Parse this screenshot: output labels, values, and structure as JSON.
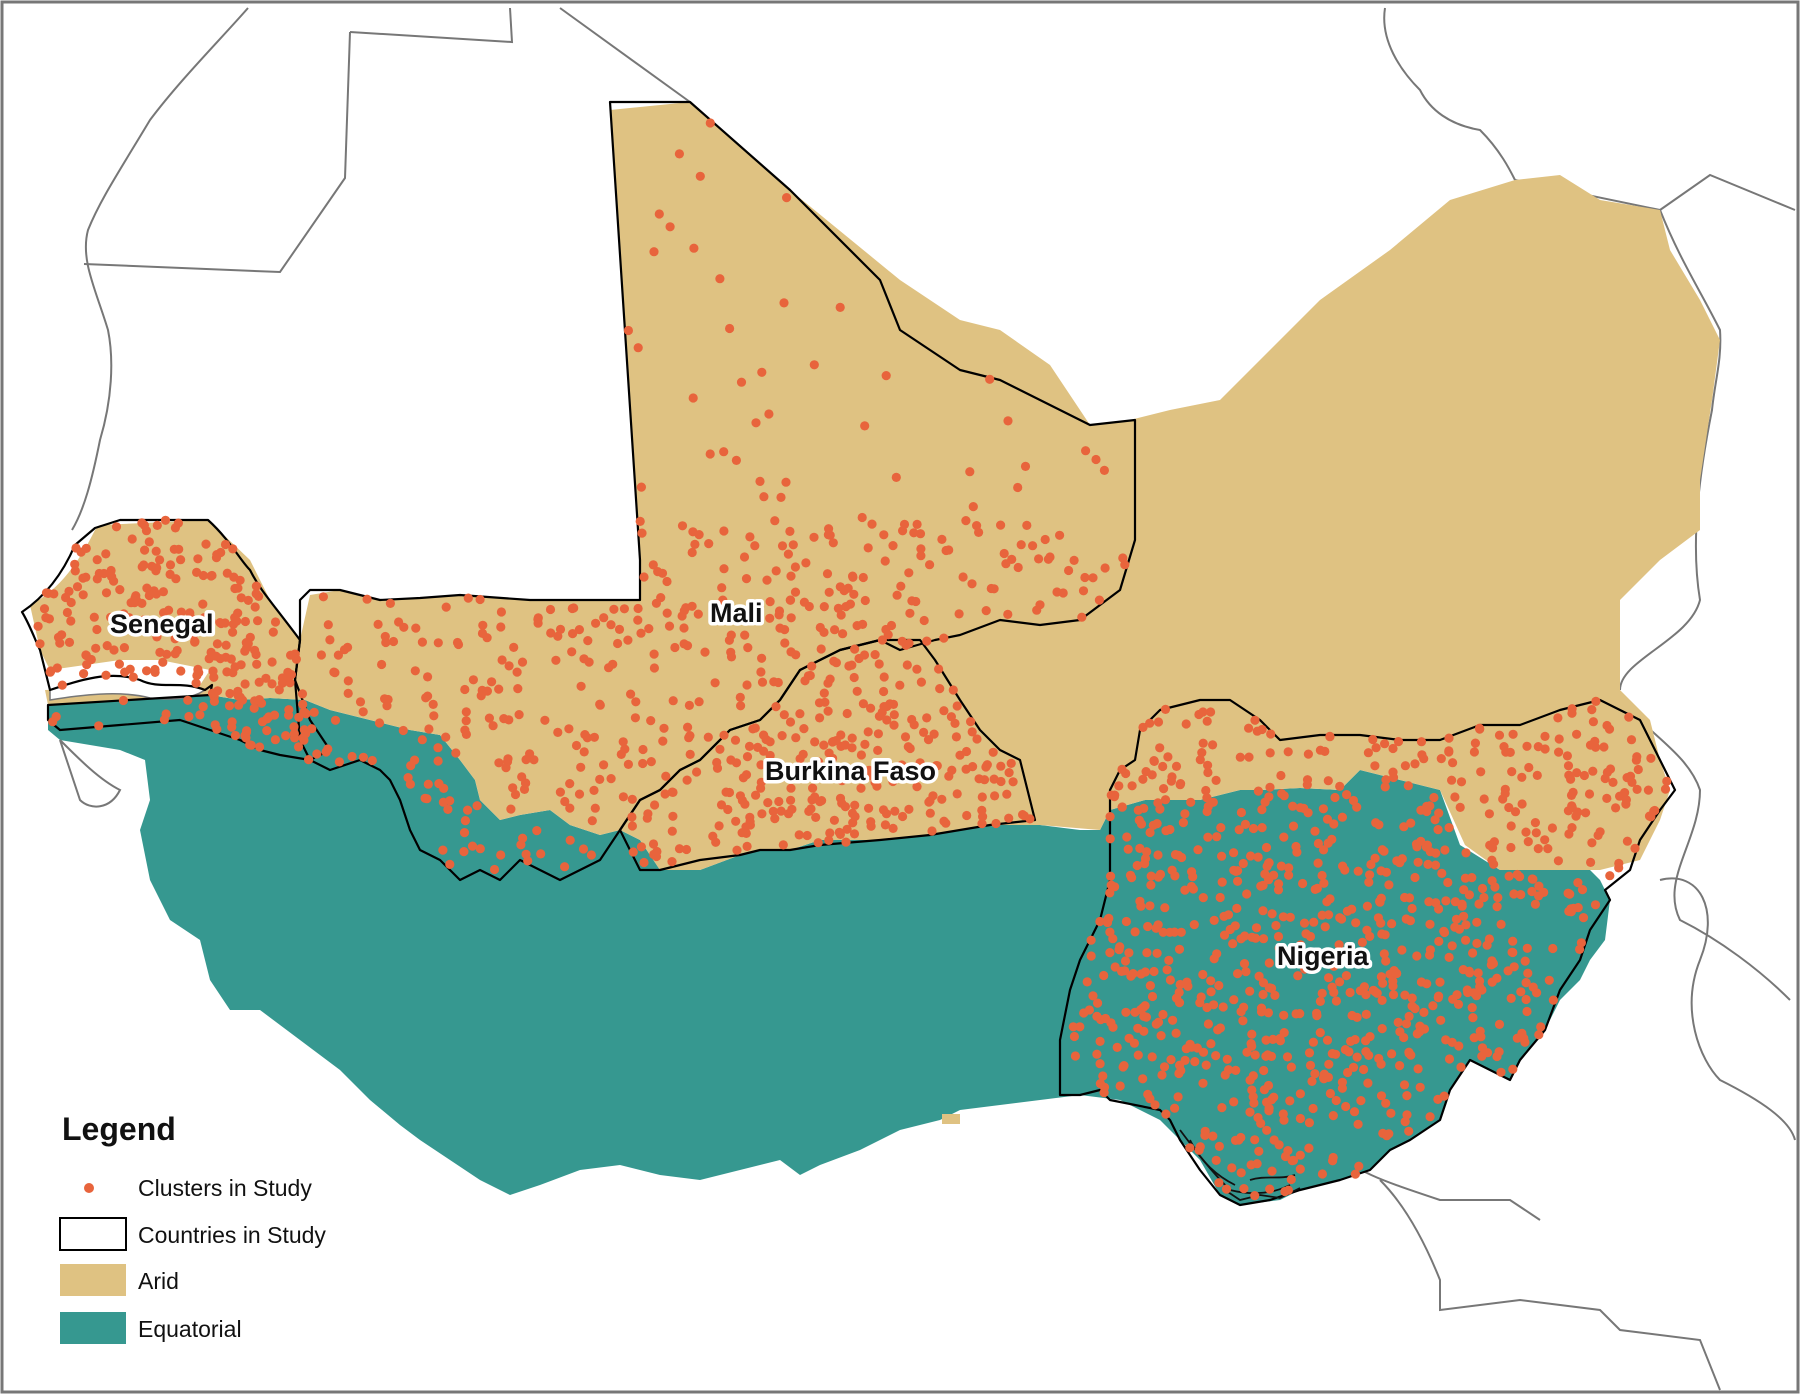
{
  "map": {
    "countries_in_study": [
      "Senegal",
      "Mali",
      "Burkina Faso",
      "Nigeria"
    ],
    "colors": {
      "arid": "#dfc282",
      "equatorial": "#369890",
      "cluster": "#e8643c",
      "study_border": "#000000",
      "other_border": "#777777",
      "background": "#ffffff"
    }
  },
  "legend": {
    "title": "Legend",
    "items": [
      {
        "label": "Clusters in Study",
        "symbol": "dot"
      },
      {
        "label": "Countries in Study",
        "symbol": "outline-box"
      },
      {
        "label": "Arid",
        "symbol": "arid-fill"
      },
      {
        "label": "Equatorial",
        "symbol": "equatorial-fill"
      }
    ]
  }
}
